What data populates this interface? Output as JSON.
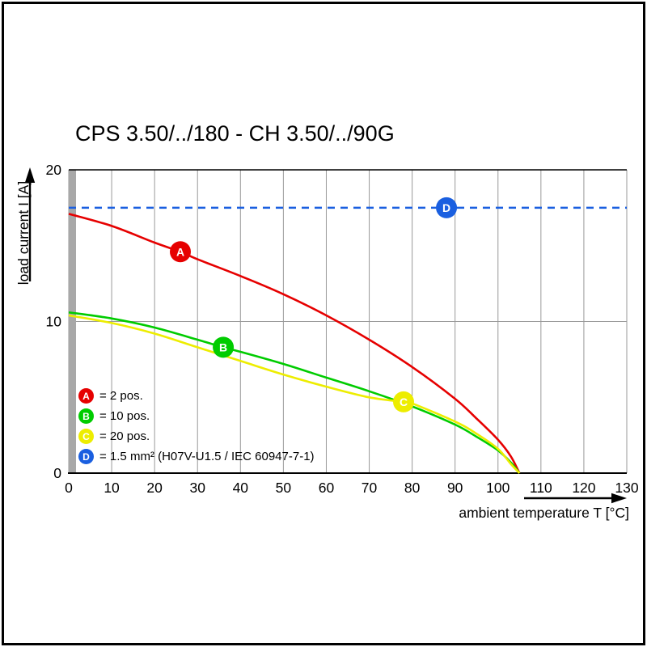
{
  "title": "CPS 3.50/../180 - CH 3.50/../90G",
  "chart_data": {
    "type": "line",
    "title": "CPS 3.50/../180 - CH 3.50/../90G",
    "xlabel": "ambient temperature T [°C]",
    "ylabel": "load current I [A]",
    "xlim": [
      0,
      130
    ],
    "ylim": [
      0,
      20
    ],
    "x_ticks": [
      0,
      10,
      20,
      30,
      40,
      50,
      60,
      70,
      80,
      90,
      100,
      110,
      120,
      130
    ],
    "y_ticks": [
      0,
      10,
      20
    ],
    "grid": "vertical gridlines every 10 °C, horizontal gridline at 10 A",
    "legend_position": "bottom-left inside plot",
    "series": [
      {
        "id": "D",
        "label": "= 1.5 mm² (H07V-U1.5 / IEC 60947-7-1)",
        "color": "#1a5fe0",
        "style": "dashed",
        "marker_at": {
          "x": 88,
          "y": 17.5
        },
        "points": [
          [
            0,
            17.5
          ],
          [
            130,
            17.5
          ]
        ]
      },
      {
        "id": "A",
        "label": "= 2 pos.",
        "color": "#e60000",
        "style": "solid",
        "marker_at": {
          "x": 26,
          "y": 14.6
        },
        "points": [
          [
            0,
            17.1
          ],
          [
            10,
            16.3
          ],
          [
            20,
            15.2
          ],
          [
            26,
            14.6
          ],
          [
            30,
            14.1
          ],
          [
            40,
            13.0
          ],
          [
            50,
            11.8
          ],
          [
            60,
            10.4
          ],
          [
            70,
            8.8
          ],
          [
            80,
            7.0
          ],
          [
            90,
            4.9
          ],
          [
            95,
            3.6
          ],
          [
            100,
            2.2
          ],
          [
            103,
            1.1
          ],
          [
            105,
            0
          ]
        ]
      },
      {
        "id": "B",
        "label": "= 10 pos.",
        "color": "#00cc00",
        "style": "solid",
        "marker_at": {
          "x": 36,
          "y": 8.3
        },
        "points": [
          [
            0,
            10.6
          ],
          [
            10,
            10.2
          ],
          [
            20,
            9.6
          ],
          [
            30,
            8.8
          ],
          [
            36,
            8.3
          ],
          [
            40,
            8.0
          ],
          [
            50,
            7.2
          ],
          [
            60,
            6.3
          ],
          [
            70,
            5.4
          ],
          [
            80,
            4.4
          ],
          [
            90,
            3.2
          ],
          [
            95,
            2.4
          ],
          [
            100,
            1.5
          ],
          [
            103,
            0.7
          ],
          [
            105,
            0
          ]
        ]
      },
      {
        "id": "C",
        "label": "= 20 pos.",
        "color": "#eded00",
        "style": "solid",
        "marker_at": {
          "x": 78,
          "y": 4.7
        },
        "points": [
          [
            0,
            10.4
          ],
          [
            10,
            9.9
          ],
          [
            20,
            9.2
          ],
          [
            30,
            8.3
          ],
          [
            40,
            7.4
          ],
          [
            50,
            6.5
          ],
          [
            60,
            5.7
          ],
          [
            70,
            5.0
          ],
          [
            78,
            4.7
          ],
          [
            80,
            4.6
          ],
          [
            90,
            3.4
          ],
          [
            95,
            2.6
          ],
          [
            100,
            1.6
          ],
          [
            103,
            0.6
          ],
          [
            105,
            0
          ]
        ]
      }
    ],
    "legend_order": [
      "A",
      "B",
      "C",
      "D"
    ],
    "axis_colors": {
      "spine": "#000000",
      "gridline": "#999999",
      "axis_band": "#a8a8a8"
    }
  }
}
